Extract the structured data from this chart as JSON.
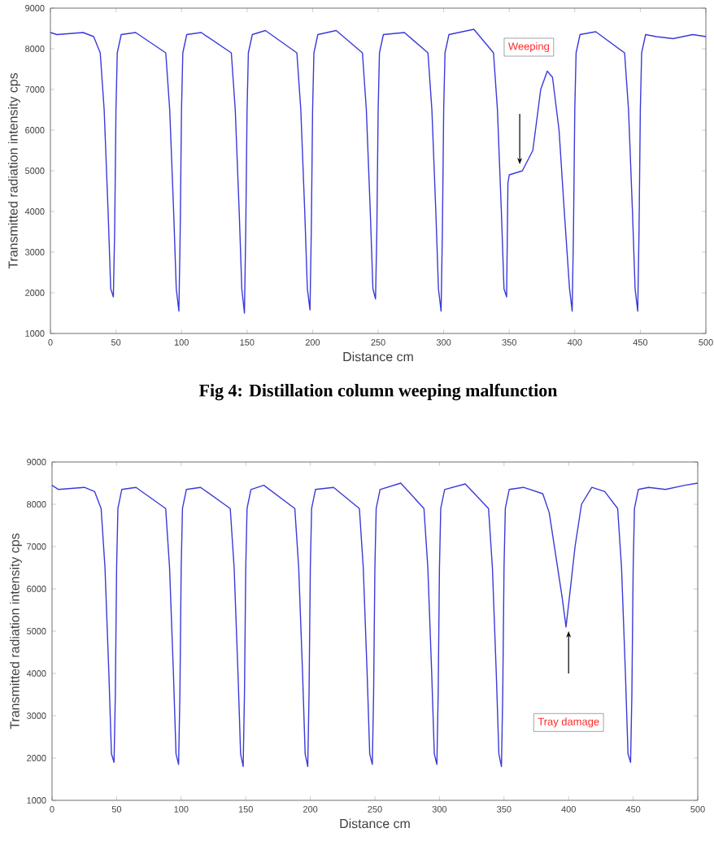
{
  "chart_data": [
    {
      "type": "line",
      "xlabel": "Distance cm",
      "ylabel": "Transmitted radiation intensity cps",
      "xlim": [
        0,
        500
      ],
      "ylim": [
        1000,
        9000
      ],
      "xticks": [
        0,
        50,
        100,
        150,
        200,
        250,
        300,
        350,
        400,
        450,
        500
      ],
      "yticks": [
        1000,
        2000,
        3000,
        4000,
        5000,
        6000,
        7000,
        8000,
        9000
      ],
      "annotations": [
        "Weeping",
        "Fig 4: Distillation column weeping malfunction"
      ],
      "series": [
        {
          "color": "#3a3ad8",
          "x": [
            0,
            5,
            25,
            33,
            38,
            41,
            44,
            46,
            48,
            49,
            50,
            51,
            54,
            65,
            88,
            91,
            94,
            96,
            98,
            99,
            100,
            101,
            104,
            115,
            138,
            141,
            144,
            146,
            148,
            149,
            150,
            151,
            154,
            164,
            188,
            191,
            194,
            196,
            198,
            199,
            200,
            201,
            204,
            218,
            238,
            241,
            244,
            246,
            248,
            249,
            250,
            251,
            254,
            270,
            288,
            291,
            294,
            296,
            298,
            299,
            300,
            301,
            304,
            323,
            338,
            341,
            344,
            346,
            348,
            349,
            350,
            360,
            368,
            374,
            379,
            383,
            388,
            392,
            396,
            398,
            399,
            400,
            401,
            404,
            416,
            438,
            441,
            444,
            446,
            448,
            449,
            450,
            451,
            454,
            462,
            475,
            490,
            500
          ],
          "values": [
            8400,
            8350,
            8400,
            8300,
            7900,
            6500,
            4000,
            2100,
            1900,
            3500,
            6500,
            7900,
            8350,
            8400,
            7900,
            6500,
            4000,
            2100,
            1550,
            3500,
            6500,
            7900,
            8350,
            8400,
            7900,
            6500,
            4000,
            2100,
            1500,
            3500,
            6500,
            7900,
            8350,
            8450,
            7900,
            6500,
            4000,
            2100,
            1580,
            3500,
            6500,
            7900,
            8350,
            8450,
            7900,
            6500,
            4000,
            2100,
            1850,
            3500,
            6500,
            7900,
            8350,
            8400,
            7900,
            6500,
            4000,
            2100,
            1550,
            3500,
            6500,
            7900,
            8350,
            8480,
            7900,
            6500,
            4000,
            2100,
            1900,
            4700,
            4900,
            5000,
            5500,
            7000,
            7450,
            7300,
            6000,
            4000,
            2100,
            1550,
            3500,
            6500,
            7900,
            8350,
            8420,
            7900,
            6500,
            4000,
            2100,
            1550,
            3500,
            6500,
            7900,
            8350,
            8300,
            8250,
            8350,
            8300
          ]
        }
      ]
    },
    {
      "type": "line",
      "xlabel": "Distance cm",
      "ylabel": "Transmitted radiation intensity cps",
      "xlim": [
        0,
        500
      ],
      "ylim": [
        1000,
        9000
      ],
      "xticks": [
        0,
        50,
        100,
        150,
        200,
        250,
        300,
        350,
        400,
        450,
        500
      ],
      "yticks": [
        1000,
        2000,
        3000,
        4000,
        5000,
        6000,
        7000,
        8000,
        9000
      ],
      "annotations": [
        "Tray damage"
      ],
      "series": [
        {
          "color": "#3a3ad8",
          "x": [
            0,
            5,
            25,
            33,
            38,
            41,
            44,
            46,
            48,
            49,
            50,
            51,
            54,
            65,
            88,
            91,
            94,
            96,
            98,
            99,
            100,
            101,
            104,
            115,
            138,
            141,
            144,
            146,
            148,
            149,
            150,
            151,
            154,
            164,
            188,
            191,
            194,
            196,
            198,
            199,
            200,
            201,
            204,
            218,
            238,
            241,
            244,
            246,
            248,
            249,
            250,
            251,
            254,
            270,
            288,
            291,
            294,
            296,
            298,
            299,
            300,
            301,
            304,
            320,
            338,
            341,
            344,
            346,
            348,
            349,
            350,
            351,
            354,
            365,
            380,
            385,
            390,
            395,
            398,
            401,
            405,
            410,
            418,
            428,
            438,
            441,
            444,
            446,
            448,
            449,
            450,
            451,
            454,
            462,
            475,
            490,
            500
          ],
          "values": [
            8450,
            8350,
            8400,
            8300,
            7900,
            6500,
            4000,
            2100,
            1900,
            3500,
            6500,
            7900,
            8350,
            8400,
            7900,
            6500,
            4000,
            2100,
            1850,
            3500,
            6500,
            7900,
            8350,
            8400,
            7900,
            6500,
            4000,
            2100,
            1800,
            3500,
            6500,
            7900,
            8350,
            8450,
            7900,
            6500,
            4000,
            2100,
            1800,
            3500,
            6500,
            7900,
            8350,
            8400,
            7900,
            6500,
            4000,
            2100,
            1850,
            3500,
            6500,
            7900,
            8350,
            8500,
            7900,
            6500,
            4000,
            2100,
            1850,
            3500,
            6500,
            7900,
            8350,
            8480,
            7900,
            6500,
            4000,
            2100,
            1800,
            3500,
            6500,
            7900,
            8350,
            8400,
            8250,
            7800,
            6800,
            5800,
            5100,
            5900,
            7000,
            8000,
            8400,
            8300,
            7900,
            6500,
            4000,
            2100,
            1900,
            3500,
            6500,
            7900,
            8350,
            8400,
            8350,
            8450,
            8500
          ]
        }
      ]
    }
  ]
}
